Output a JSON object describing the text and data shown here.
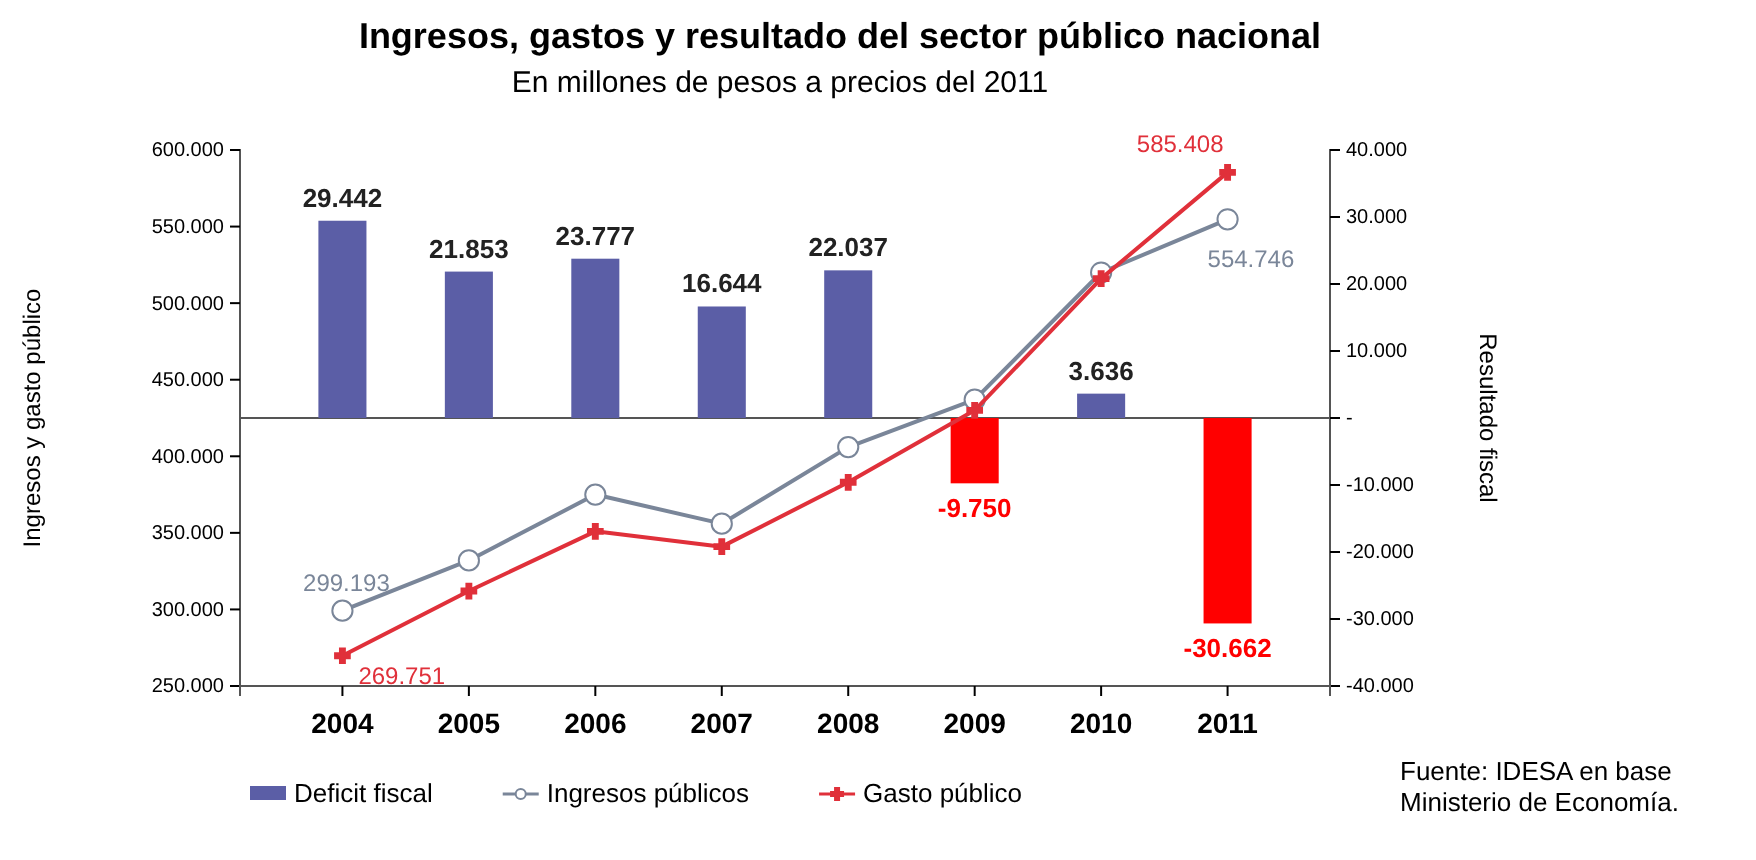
{
  "chart_data": {
    "type": "bar",
    "title": "Ingresos, gastos y resultado del sector público nacional",
    "subtitle": "En millones de pesos  a precios del 2011",
    "ylabel": "Ingresos y gasto público",
    "y2label": "Resultado fiscal",
    "categories": [
      "2004",
      "2005",
      "2006",
      "2007",
      "2008",
      "2009",
      "2010",
      "2011"
    ],
    "series": [
      {
        "name": "Deficit fiscal",
        "axis": "y2",
        "color": "#5b5ea6",
        "colors": [
          "#5b5ea6",
          "#5b5ea6",
          "#5b5ea6",
          "#5b5ea6",
          "#5b5ea6",
          "#ff0000",
          "#5b5ea6",
          "#ff0000"
        ],
        "values": [
          29442,
          21853,
          23777,
          16644,
          22037,
          -9750,
          3636,
          -30662
        ],
        "value_labels": [
          "29.442",
          "21.853",
          "23.777",
          "16.644",
          "22.037",
          "-9.750",
          "3.636",
          "-30.662"
        ]
      },
      {
        "name": "Ingresos públicos",
        "type": "line",
        "color": "#7a8699",
        "marker": "circle",
        "values": [
          299193,
          332000,
          375000,
          356000,
          406000,
          437000,
          520000,
          554746
        ],
        "value_labels": [
          "299.193",
          null,
          null,
          null,
          null,
          null,
          null,
          "554.746"
        ]
      },
      {
        "name": "Gasto público",
        "type": "line",
        "color": "#e0303a",
        "marker": "cross",
        "values": [
          269751,
          312000,
          351000,
          341000,
          383000,
          430000,
          516000,
          585408
        ],
        "value_labels": [
          "269.751",
          null,
          null,
          null,
          null,
          null,
          null,
          "585.408"
        ]
      }
    ],
    "ylim": [
      250000,
      600000
    ],
    "yticks": [
      {
        "value": 250000,
        "label": "250.000"
      },
      {
        "value": 300000,
        "label": "300.000"
      },
      {
        "value": 350000,
        "label": "350.000"
      },
      {
        "value": 400000,
        "label": "400.000"
      },
      {
        "value": 450000,
        "label": "450.000"
      },
      {
        "value": 500000,
        "label": "500.000"
      },
      {
        "value": 550000,
        "label": "550.000"
      },
      {
        "value": 600000,
        "label": "600.000"
      }
    ],
    "y2lim": [
      -40000,
      40000
    ],
    "y2ticks": [
      {
        "value": -40000,
        "label": "-40.000"
      },
      {
        "value": -30000,
        "label": "-30.000"
      },
      {
        "value": -20000,
        "label": "-20.000"
      },
      {
        "value": -10000,
        "label": "-10.000"
      },
      {
        "value": 0,
        "label": "-"
      },
      {
        "value": 10000,
        "label": "10.000"
      },
      {
        "value": 20000,
        "label": "20.000"
      },
      {
        "value": 30000,
        "label": "30.000"
      },
      {
        "value": 40000,
        "label": "40.000"
      }
    ],
    "legend": "bottom",
    "annotations": [
      "Fuente: IDESA en base Ministerio de Economía."
    ]
  }
}
